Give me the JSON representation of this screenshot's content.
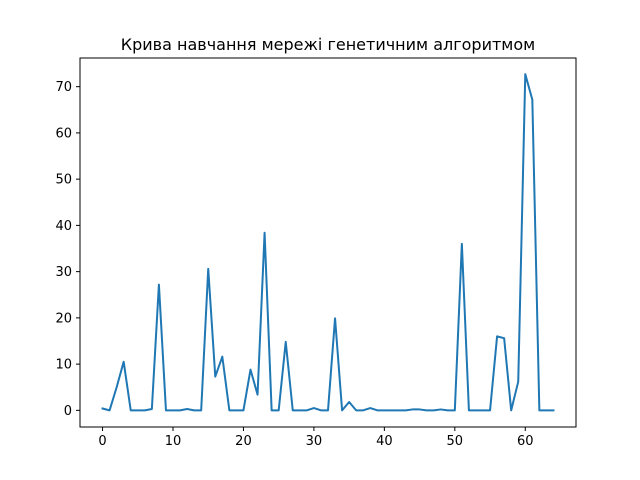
{
  "chart_data": {
    "type": "line",
    "title": "Крива навчання мережі генетичним алгоритмом",
    "xlabel": "",
    "ylabel": "",
    "xlim": [
      -3.2,
      67.2
    ],
    "ylim": [
      -3.6,
      76.2
    ],
    "x_ticks": [
      0,
      10,
      20,
      30,
      40,
      50,
      60
    ],
    "y_ticks": [
      0,
      10,
      20,
      30,
      40,
      50,
      60,
      70
    ],
    "grid": false,
    "series": [
      {
        "color": "#1f77b4",
        "x": [
          0,
          1,
          2,
          3,
          4,
          5,
          6,
          7,
          8,
          9,
          10,
          11,
          12,
          13,
          14,
          15,
          16,
          17,
          18,
          19,
          20,
          21,
          22,
          23,
          24,
          25,
          26,
          27,
          28,
          29,
          30,
          31,
          32,
          33,
          34,
          35,
          36,
          37,
          38,
          39,
          40,
          41,
          42,
          43,
          44,
          45,
          46,
          47,
          48,
          49,
          50,
          51,
          52,
          53,
          54,
          55,
          56,
          57,
          58,
          59,
          60,
          61,
          62,
          63,
          64
        ],
        "values": [
          0.4,
          0,
          5,
          10.5,
          0,
          0,
          0,
          0.3,
          27.2,
          0,
          0,
          0,
          0.3,
          0,
          0,
          30.6,
          7.3,
          11.6,
          0,
          0,
          0,
          8.8,
          3.4,
          38.4,
          0,
          0,
          14.8,
          0,
          0,
          0,
          0.5,
          0,
          0,
          19.9,
          0,
          1.8,
          0,
          0,
          0.5,
          0,
          0,
          0,
          0,
          0,
          0.2,
          0.2,
          0,
          0,
          0.2,
          0,
          0,
          36,
          0,
          0,
          0,
          0,
          16,
          15.6,
          0,
          6.2,
          72.7,
          67.2,
          0,
          0,
          0
        ]
      }
    ]
  }
}
